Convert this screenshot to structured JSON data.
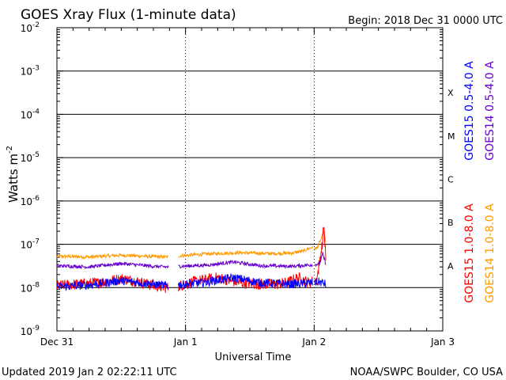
{
  "header": {
    "title": "GOES Xray Flux (1-minute data)",
    "begin": "Begin:  2018 Dec 31 0000 UTC"
  },
  "footer": {
    "updated": "Updated 2019 Jan  2 02:22:11 UTC",
    "credit": "NOAA/SWPC Boulder, CO USA"
  },
  "chart_data": {
    "type": "line",
    "title": "GOES Xray Flux (1-minute data)",
    "xlabel": "Universal Time",
    "ylabel": "Watts m",
    "ylabel_superscript": "-2",
    "yscale": "log",
    "ylim": [
      1e-09,
      0.01
    ],
    "xlim": [
      0,
      72
    ],
    "x_ticks": [
      {
        "hour": 0,
        "label": "Dec 31"
      },
      {
        "hour": 24,
        "label": "Jan 1"
      },
      {
        "hour": 48,
        "label": "Jan 2"
      },
      {
        "hour": 72,
        "label": "Jan 3"
      }
    ],
    "y_ticks": [
      {
        "value": 1e-09,
        "label": "10",
        "exp": "-9"
      },
      {
        "value": 1e-08,
        "label": "10",
        "exp": "-8"
      },
      {
        "value": 1e-07,
        "label": "10",
        "exp": "-7"
      },
      {
        "value": 1e-06,
        "label": "10",
        "exp": "-6"
      },
      {
        "value": 1e-05,
        "label": "10",
        "exp": "-5"
      },
      {
        "value": 0.0001,
        "label": "10",
        "exp": "-4"
      },
      {
        "value": 0.001,
        "label": "10",
        "exp": "-3"
      },
      {
        "value": 0.01,
        "label": "10",
        "exp": "-2"
      }
    ],
    "flare_classes": [
      {
        "label": "A",
        "value": 3.16e-08
      },
      {
        "label": "B",
        "value": 3.16e-07
      },
      {
        "label": "C",
        "value": 3.16e-06
      },
      {
        "label": "M",
        "value": 3.16e-05
      },
      {
        "label": "X",
        "value": 0.000316
      }
    ],
    "threshold_lines": [
      1e-08,
      1e-07,
      1e-06,
      1e-05,
      0.0001,
      0.001
    ],
    "gaps_hours": [
      [
        20.8,
        22.6
      ],
      [
        47.7,
        48.0
      ]
    ],
    "series": [
      {
        "name": "GOES14 1.0-8.0 A",
        "color": "#ff9900",
        "x": [
          0,
          6,
          12,
          18,
          20.5,
          22.8,
          28,
          34,
          40,
          44,
          46,
          47.5,
          48.5,
          49.5,
          49.8,
          50.2
        ],
        "y": [
          5.3e-08,
          5.1e-08,
          5.6e-08,
          5.2e-08,
          5.1e-08,
          5.4e-08,
          6e-08,
          6.4e-08,
          6.1e-08,
          6.3e-08,
          7e-08,
          8.5e-08,
          8e-08,
          1.5e-07,
          2e-07,
          1e-07
        ]
      },
      {
        "name": "GOES15 1.0-8.0 A",
        "color": "#ff0000",
        "x": [
          0,
          4,
          8,
          12,
          15,
          18,
          20.5,
          22.8,
          26,
          30,
          34,
          38,
          41,
          43,
          45,
          47,
          48.5,
          49.6,
          49.8,
          50.2
        ],
        "y": [
          1.1e-08,
          1.2e-08,
          1.3e-08,
          1.6e-08,
          1.4e-08,
          1.1e-08,
          1e-08,
          1.1e-08,
          1.4e-08,
          1.7e-08,
          1.3e-08,
          1.2e-08,
          1.2e-08,
          1.3e-08,
          1.7e-08,
          1.3e-08,
          1.5e-08,
          1.2e-07,
          3.2e-07,
          4e-08
        ]
      },
      {
        "name": "GOES14 0.5-4.0 A",
        "color": "#6600cc",
        "x": [
          0,
          6,
          12,
          18,
          20.5,
          22.8,
          28,
          33,
          38,
          44,
          48,
          49,
          49.6,
          50.2
        ],
        "y": [
          3.2e-08,
          3e-08,
          3.6e-08,
          3.1e-08,
          3e-08,
          3.1e-08,
          3.3e-08,
          3.9e-08,
          3.2e-08,
          3.1e-08,
          3.4e-08,
          3.5e-08,
          6e-08,
          3.5e-08
        ]
      },
      {
        "name": "GOES15 0.5-4.0 A",
        "color": "#0000ff",
        "x": [
          0,
          6,
          12,
          18,
          20.5,
          22.8,
          28,
          33,
          38,
          44,
          48,
          49,
          50.2
        ],
        "y": [
          1.05e-08,
          1.15e-08,
          1.45e-08,
          1.2e-08,
          1.1e-08,
          1.15e-08,
          1.35e-08,
          1.7e-08,
          1.3e-08,
          1.2e-08,
          1.3e-08,
          1.35e-08,
          1.2e-08
        ]
      }
    ]
  }
}
